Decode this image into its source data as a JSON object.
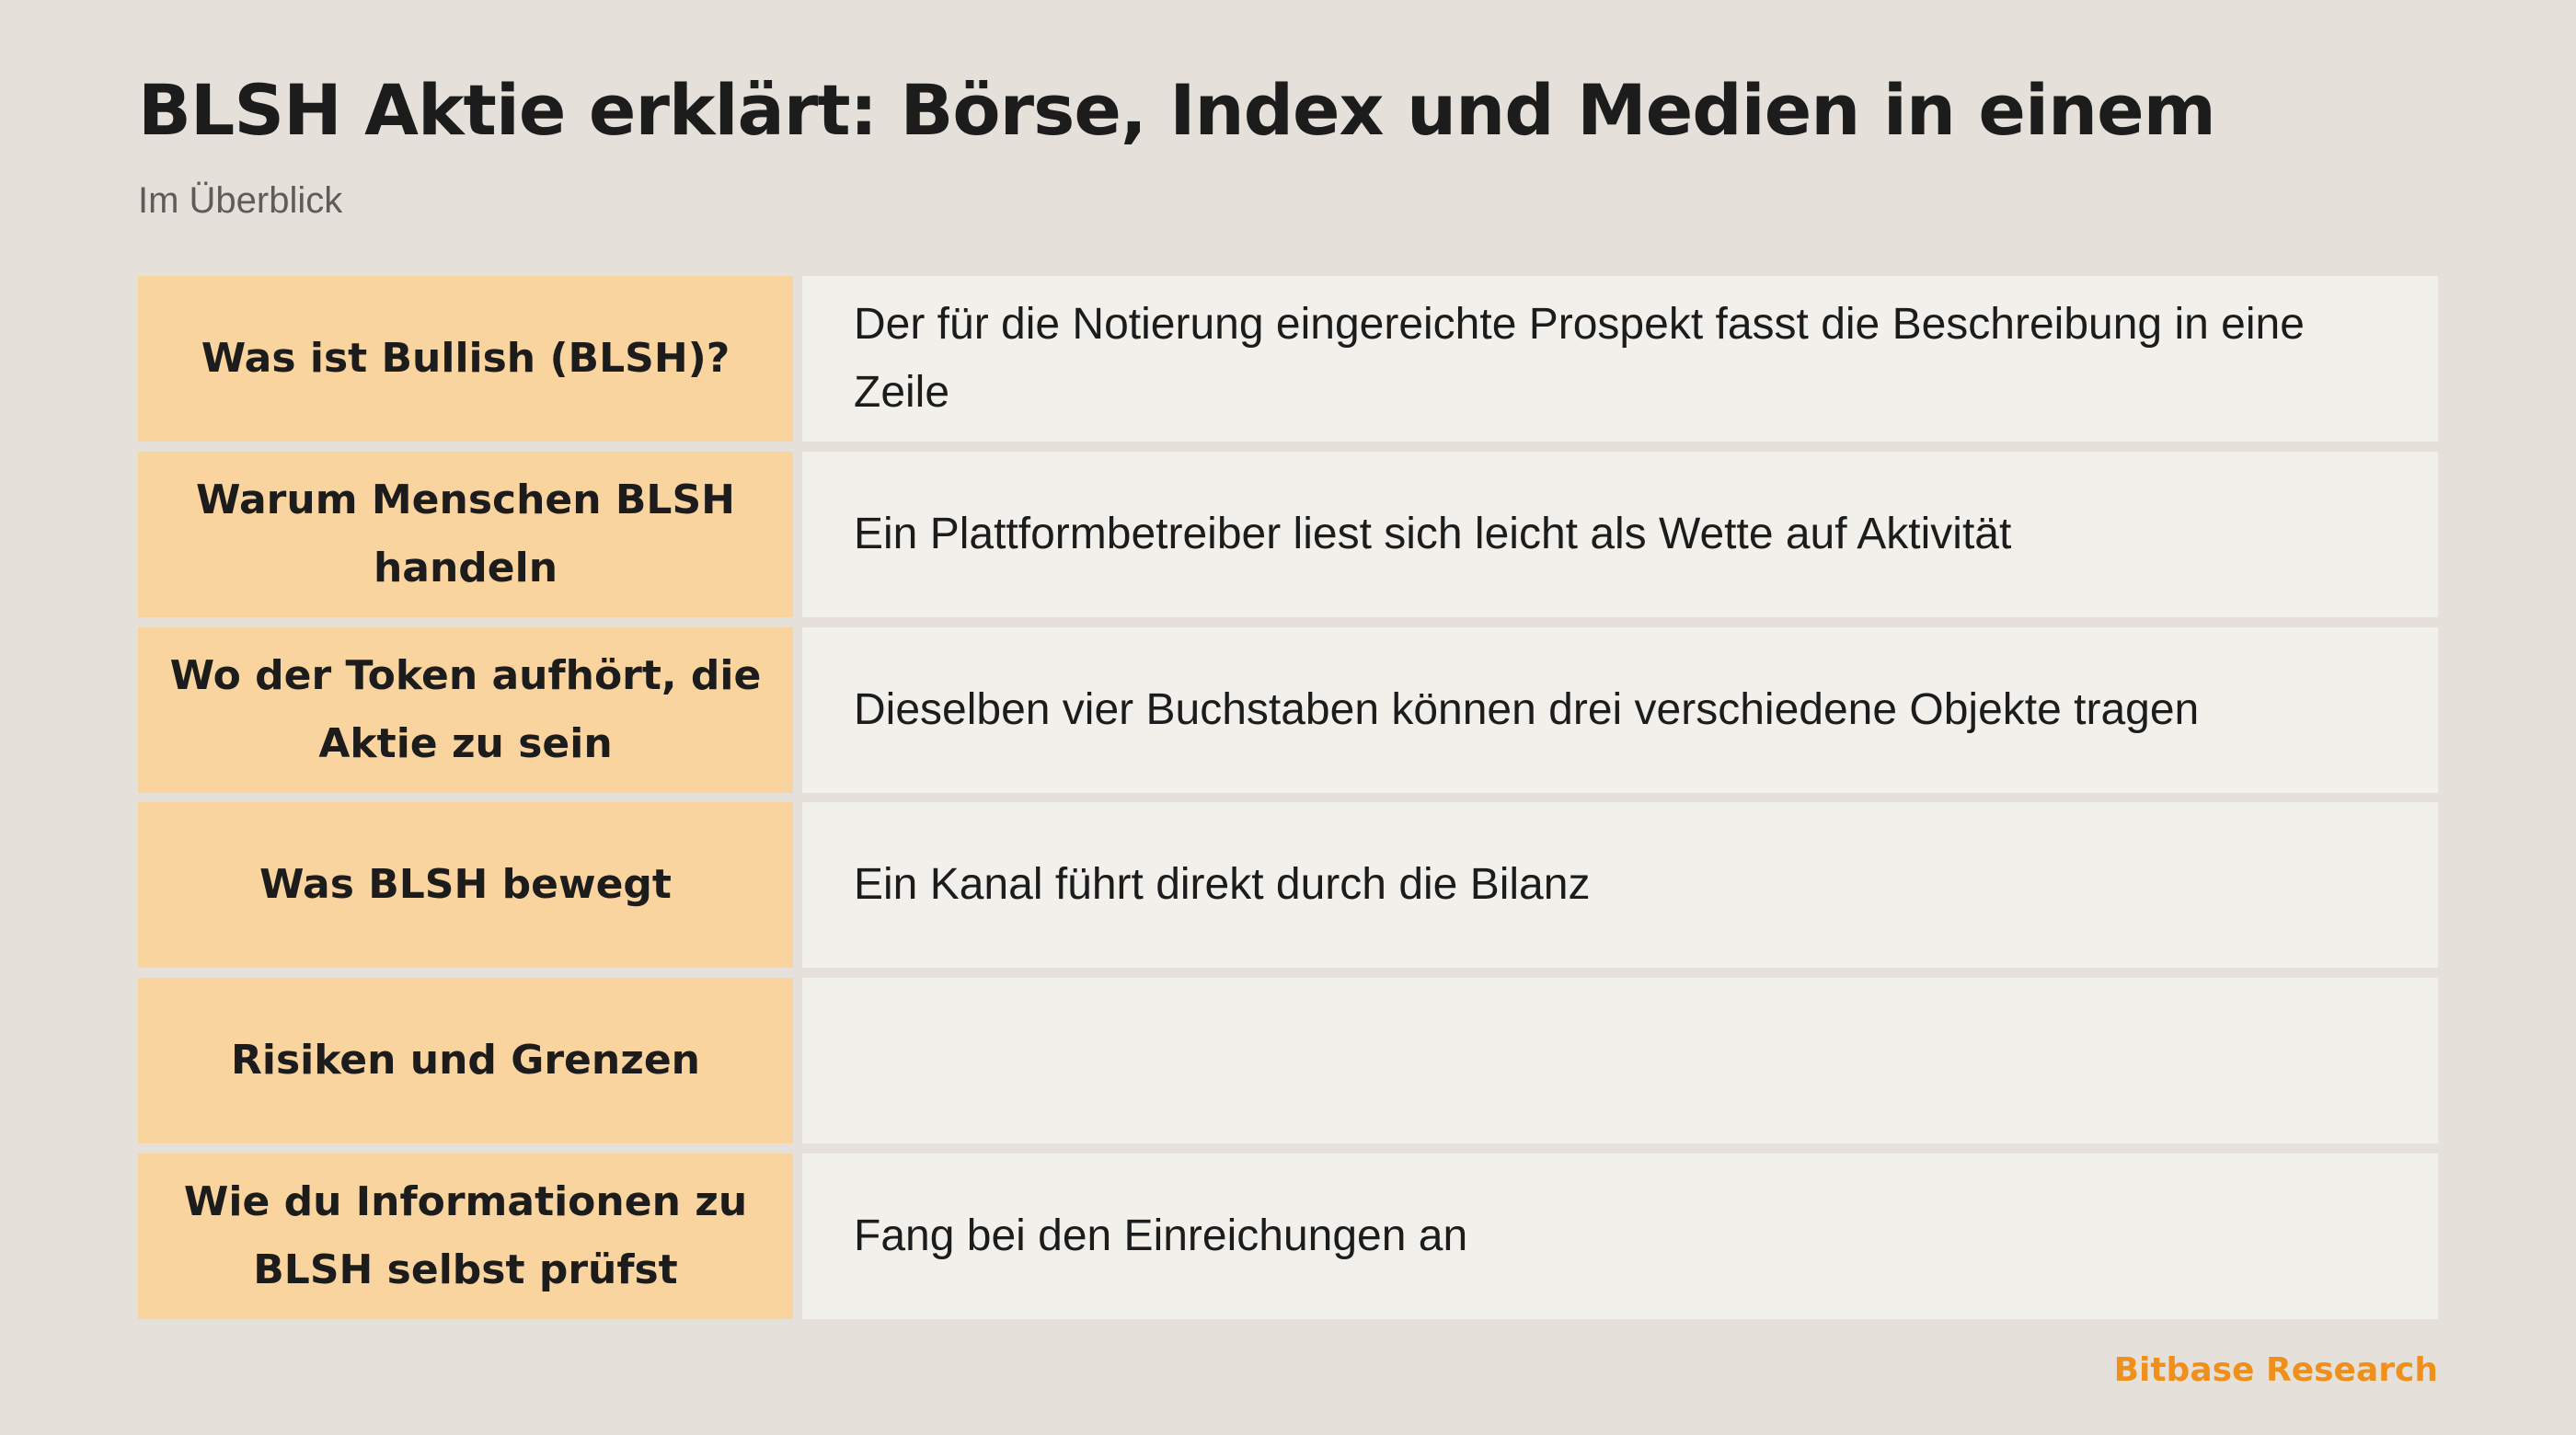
{
  "header": {
    "title": "BLSH Aktie erklärt: Börse, Index und Medien in einem",
    "subtitle": "Im Überblick"
  },
  "table": {
    "rows": [
      {
        "label": "Was ist Bullish (BLSH)?",
        "value": "Der für die Notierung eingereichte Prospekt fasst die Beschreibung in eine Zeile"
      },
      {
        "label": "Warum Menschen BLSH handeln",
        "value": "Ein Plattformbetreiber liest sich leicht als Wette auf Aktivität"
      },
      {
        "label": "Wo der Token aufhört, die Aktie zu sein",
        "value": "Dieselben vier Buchstaben können drei verschiedene Objekte tragen"
      },
      {
        "label": "Was BLSH bewegt",
        "value": "Ein Kanal führt direkt durch die Bilanz"
      },
      {
        "label": "Risiken und Grenzen",
        "value": ""
      },
      {
        "label": "Wie du Informationen zu BLSH selbst prüfst",
        "value": "Fang bei den Einreichungen an"
      }
    ]
  },
  "footer": {
    "brand": "Bitbase Research"
  },
  "colors": {
    "background": "#e5e0da",
    "label_cell": "#fad49f",
    "value_cell": "#f2f0ea",
    "brand": "#f0901c"
  }
}
